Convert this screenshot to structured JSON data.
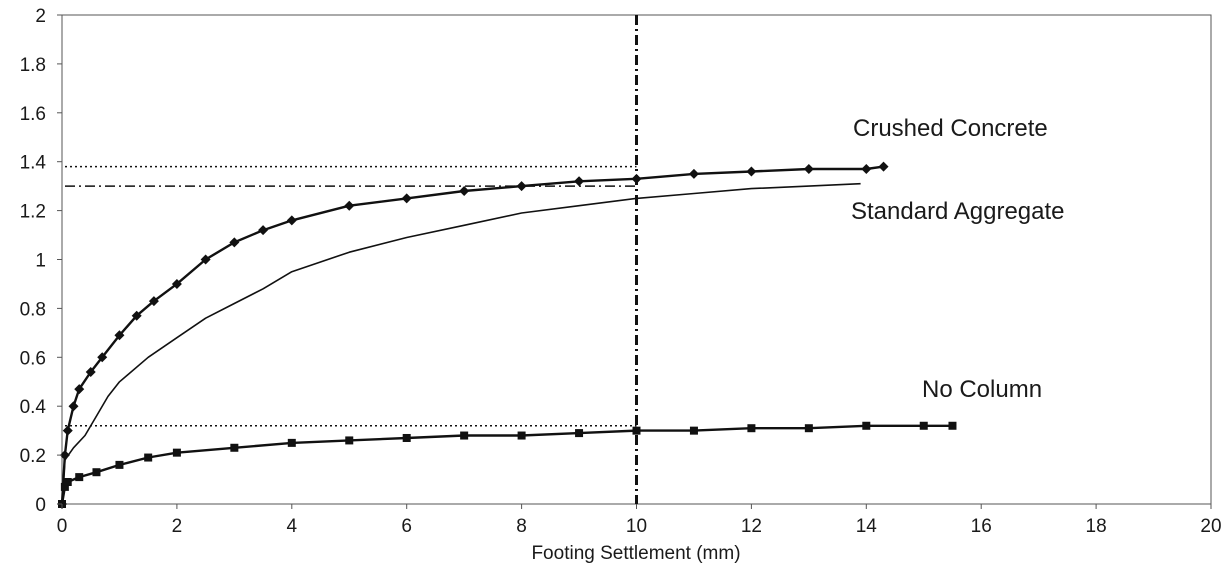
{
  "chart_data": {
    "type": "line",
    "title": "",
    "xlabel": "Footing Settlement (mm)",
    "ylabel": "",
    "xlim": [
      0,
      20
    ],
    "ylim": [
      0,
      2
    ],
    "x_ticks": [
      0,
      2,
      4,
      6,
      8,
      10,
      12,
      14,
      16,
      18,
      20
    ],
    "y_ticks": [
      0,
      0.2,
      0.4,
      0.6,
      0.8,
      1,
      1.2,
      1.4,
      1.6,
      1.8,
      2
    ],
    "y_tick_labels": [
      "0",
      "0.2",
      "0.4",
      "0.6",
      "0.8",
      "1",
      "1.2",
      "1.4",
      "1.6",
      "1.8",
      "2"
    ],
    "grid": false,
    "series": [
      {
        "name": "Crushed Concrete",
        "marker": "diamond",
        "color": "#111111",
        "x": [
          0,
          0.05,
          0.1,
          0.2,
          0.3,
          0.5,
          0.7,
          1.0,
          1.3,
          1.6,
          2.0,
          2.5,
          3.0,
          3.5,
          4.0,
          5.0,
          6.0,
          7.0,
          8.0,
          9.0,
          10.0,
          11.0,
          12.0,
          13.0,
          14.0,
          14.3
        ],
        "y": [
          0,
          0.2,
          0.3,
          0.4,
          0.47,
          0.54,
          0.6,
          0.69,
          0.77,
          0.83,
          0.9,
          1.0,
          1.07,
          1.12,
          1.16,
          1.22,
          1.25,
          1.28,
          1.3,
          1.32,
          1.33,
          1.35,
          1.36,
          1.37,
          1.37,
          1.38
        ]
      },
      {
        "name": "Standard Aggregate",
        "marker": "none",
        "color": "#111111",
        "x": [
          0,
          0.05,
          0.2,
          0.4,
          0.6,
          0.8,
          1.0,
          1.5,
          2.0,
          2.5,
          3.0,
          3.5,
          4.0,
          5.0,
          6.0,
          7.0,
          8.0,
          9.0,
          10.0,
          11.0,
          12.0,
          13.0,
          13.9
        ],
        "y": [
          0,
          0.18,
          0.23,
          0.28,
          0.36,
          0.44,
          0.5,
          0.6,
          0.68,
          0.76,
          0.82,
          0.88,
          0.95,
          1.03,
          1.09,
          1.14,
          1.19,
          1.22,
          1.25,
          1.27,
          1.29,
          1.3,
          1.31
        ]
      },
      {
        "name": "No Column",
        "marker": "square",
        "color": "#111111",
        "x": [
          0,
          0.05,
          0.1,
          0.3,
          0.6,
          1.0,
          1.5,
          2.0,
          3.0,
          4.0,
          5.0,
          6.0,
          7.0,
          8.0,
          9.0,
          10.0,
          11.0,
          12.0,
          13.0,
          14.0,
          15.0,
          15.5
        ],
        "y": [
          0,
          0.07,
          0.09,
          0.11,
          0.13,
          0.16,
          0.19,
          0.21,
          0.23,
          0.25,
          0.26,
          0.27,
          0.28,
          0.28,
          0.29,
          0.3,
          0.3,
          0.31,
          0.31,
          0.32,
          0.32,
          0.32
        ]
      }
    ],
    "reference_lines": [
      {
        "orientation": "vertical",
        "x": 10,
        "y_range": [
          0,
          2
        ],
        "style": "dash-dot"
      },
      {
        "orientation": "horizontal",
        "y": 1.38,
        "x_range": [
          0,
          10
        ],
        "style": "dotted"
      },
      {
        "orientation": "horizontal",
        "y": 1.3,
        "x_range": [
          0,
          10
        ],
        "style": "dash-dot"
      },
      {
        "orientation": "horizontal",
        "y": 0.32,
        "x_range": [
          0,
          10
        ],
        "style": "dotted"
      }
    ]
  }
}
